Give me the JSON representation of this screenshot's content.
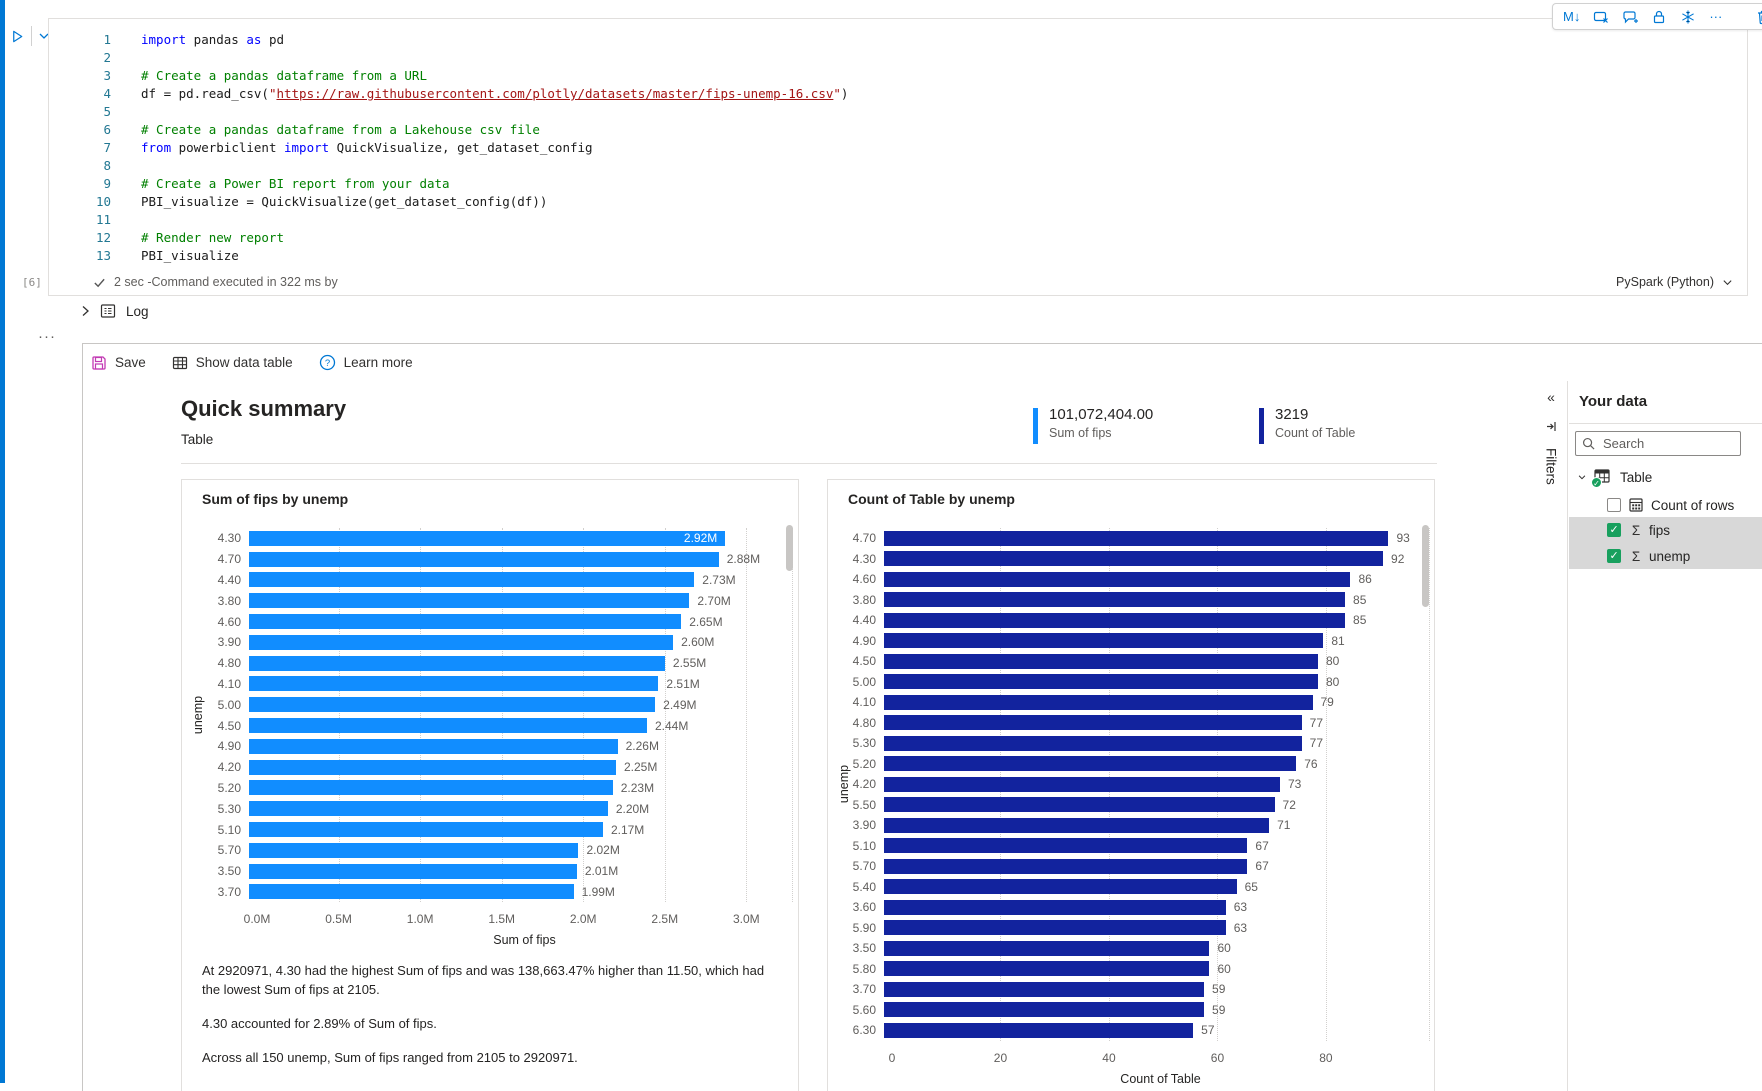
{
  "icons": {
    "markdown_glyph": "M↓",
    "more_glyph": "···",
    "ellipsis_glyph": "···",
    "collapse_glyph": "«"
  },
  "cell": {
    "code_lines": [
      [
        [
          "kw",
          "import"
        ],
        [
          "pl",
          " pandas "
        ],
        [
          "kw",
          "as"
        ],
        [
          "pl",
          " pd"
        ]
      ],
      [],
      [
        [
          "cm",
          "# Create a pandas dataframe from a URL"
        ]
      ],
      [
        [
          "pl",
          "df = pd.read_csv("
        ],
        [
          "st",
          "\""
        ],
        [
          "lk",
          "https://raw.githubusercontent.com/plotly/datasets/master/fips-unemp-16.csv"
        ],
        [
          "st",
          "\""
        ],
        [
          "pl",
          ")"
        ]
      ],
      [],
      [
        [
          "cm",
          "# Create a pandas dataframe from a Lakehouse csv file"
        ]
      ],
      [
        [
          "kw",
          "from"
        ],
        [
          "pl",
          " powerbiclient "
        ],
        [
          "kw",
          "import"
        ],
        [
          "pl",
          " QuickVisualize, get_dataset_config"
        ]
      ],
      [],
      [
        [
          "cm",
          "# Create a Power BI report from your data"
        ]
      ],
      [
        [
          "pl",
          "PBI_visualize = QuickVisualize(get_dataset_config(df))"
        ]
      ],
      [],
      [
        [
          "cm",
          "# Render new report"
        ]
      ],
      [
        [
          "pl",
          "PBI_visualize"
        ]
      ]
    ],
    "status": {
      "execution_count": "[6]",
      "duration_text": "2 sec -Command executed in 322 ms by",
      "kernel": "PySpark (Python)"
    }
  },
  "log": {
    "label": "Log"
  },
  "report_toolbar": {
    "save": "Save",
    "show_data_table": "Show data table",
    "learn_more": "Learn more"
  },
  "report": {
    "title": "Quick summary",
    "subtitle": "Table",
    "kpis": [
      {
        "value": "101,072,404.00",
        "label": "Sum of fips",
        "accent": "#118DFF"
      },
      {
        "value": "3219",
        "label": "Count of Table",
        "accent": "#12239E"
      }
    ],
    "insights": [
      "At 2920971, 4.30 had the highest Sum of fips and was 138,663.47% higher than 11.50, which had the lowest Sum of fips at 2105.",
      "4.30 accounted for 2.89% of Sum of fips.",
      "Across all 150 unemp, Sum of fips ranged from 2105 to 2920971."
    ]
  },
  "chart_data": [
    {
      "type": "bar",
      "orientation": "horizontal",
      "title": "Sum of fips by unemp",
      "xlabel": "Sum of fips",
      "ylabel": "unemp",
      "categories": [
        "4.30",
        "4.70",
        "4.40",
        "3.80",
        "4.60",
        "3.90",
        "4.80",
        "4.10",
        "5.00",
        "4.50",
        "4.90",
        "4.20",
        "5.20",
        "5.30",
        "5.10",
        "5.70",
        "3.50",
        "3.70"
      ],
      "values": [
        2.92,
        2.88,
        2.73,
        2.7,
        2.65,
        2.6,
        2.55,
        2.51,
        2.49,
        2.44,
        2.26,
        2.25,
        2.23,
        2.2,
        2.17,
        2.02,
        2.01,
        1.99
      ],
      "value_labels": [
        "2.92M",
        "2.88M",
        "2.73M",
        "2.70M",
        "2.65M",
        "2.60M",
        "2.55M",
        "2.51M",
        "2.49M",
        "2.44M",
        "2.26M",
        "2.25M",
        "2.23M",
        "2.20M",
        "2.17M",
        "2.02M",
        "2.01M",
        "1.99M"
      ],
      "xtick_labels": [
        "0.0M",
        "0.5M",
        "1.0M",
        "1.5M",
        "2.0M",
        "2.5M",
        "3.0M"
      ],
      "xtick_values": [
        0,
        0.5,
        1,
        1.5,
        2,
        2.5,
        3
      ],
      "xmax_render": 3.28,
      "xlim": [
        0,
        3.28
      ],
      "grid": true,
      "bar_color": "#118DFF",
      "inside_label_index": 0
    },
    {
      "type": "bar",
      "orientation": "horizontal",
      "title": "Count of Table by unemp",
      "xlabel": "Count of Table",
      "ylabel": "unemp",
      "categories": [
        "4.70",
        "4.30",
        "4.60",
        "3.80",
        "4.40",
        "4.90",
        "4.50",
        "5.00",
        "4.10",
        "4.80",
        "5.30",
        "5.20",
        "4.20",
        "5.50",
        "3.90",
        "5.10",
        "5.70",
        "5.40",
        "3.60",
        "5.90",
        "3.50",
        "5.80",
        "3.70",
        "5.60",
        "6.30"
      ],
      "values": [
        93,
        92,
        86,
        85,
        85,
        81,
        80,
        80,
        79,
        77,
        77,
        76,
        73,
        72,
        71,
        67,
        67,
        65,
        63,
        63,
        60,
        60,
        59,
        59,
        57
      ],
      "value_labels": [
        "93",
        "92",
        "86",
        "85",
        "85",
        "81",
        "80",
        "80",
        "79",
        "77",
        "77",
        "76",
        "73",
        "72",
        "71",
        "67",
        "67",
        "65",
        "63",
        "63",
        "60",
        "60",
        "59",
        "59",
        "57"
      ],
      "xtick_labels": [
        "0",
        "20",
        "40",
        "60",
        "80"
      ],
      "xtick_values": [
        0,
        20,
        40,
        60,
        80
      ],
      "xmax_render": 99,
      "xlim": [
        0,
        99
      ],
      "grid": true,
      "bar_color": "#12239E",
      "inside_label_index": -1
    }
  ],
  "filters_pane": {
    "label": "Filters"
  },
  "your_data": {
    "title": "Your data",
    "search_placeholder": "Search",
    "tree": {
      "table_label": "Table",
      "items": [
        {
          "label": "Count of rows",
          "checked": false,
          "selected": false,
          "icon": "count-rows-icon"
        },
        {
          "label": "fips",
          "checked": true,
          "selected": true,
          "icon": "sigma-icon"
        },
        {
          "label": "unemp",
          "checked": true,
          "selected": true,
          "icon": "sigma-icon"
        }
      ]
    }
  }
}
